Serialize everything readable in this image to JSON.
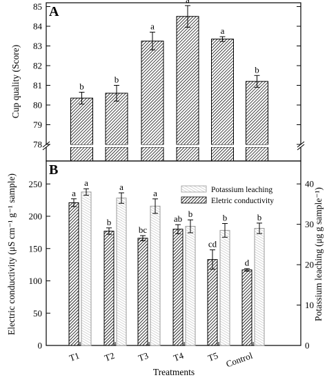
{
  "chart_data": [
    {
      "panel": "A",
      "type": "bar",
      "categories": [
        "T1",
        "T2",
        "T3",
        "T4",
        "T5",
        "Control"
      ],
      "values": [
        80.35,
        80.6,
        83.25,
        84.5,
        83.35,
        81.2
      ],
      "errors": [
        0.3,
        0.4,
        0.45,
        0.55,
        0.12,
        0.3
      ],
      "letters": [
        "b",
        "b",
        "a",
        "a",
        "a",
        "b"
      ],
      "ylabel": "Cup quality (Score)",
      "ylim": [
        78,
        85.5
      ],
      "yticks": [
        78,
        79,
        80,
        81,
        82,
        83,
        84,
        85
      ],
      "axis_break": true,
      "grid": false
    },
    {
      "panel": "B",
      "type": "bar",
      "categories": [
        "T1",
        "T2",
        "T3",
        "T4",
        "T5",
        "Control"
      ],
      "xlabel": "Treatments",
      "ylabel": "Electric conductivity (μS cm⁻¹ g⁻¹ sample)",
      "ylabel_right": "Potassium leaching (μg g sample⁻¹)",
      "ylim": [
        0,
        275
      ],
      "ylim_right": [
        0,
        44
      ],
      "yticks": [
        0,
        50,
        100,
        150,
        200,
        250
      ],
      "yticks_right": [
        0,
        10,
        20,
        30,
        40
      ],
      "legend_position": "top-right",
      "grid": false,
      "series": [
        {
          "name": "Eletric conductivity",
          "axis": "left",
          "values": [
            221,
            177,
            166,
            180,
            133,
            117
          ],
          "errors": [
            6,
            5,
            4,
            7,
            15,
            2
          ],
          "letters": [
            "a",
            "b",
            "bc",
            "ab",
            "cd",
            "d"
          ]
        },
        {
          "name": "Potassium leaching",
          "axis": "right",
          "values": [
            38,
            36.5,
            34.5,
            29.5,
            28.5,
            29
          ],
          "errors": [
            0.8,
            1.3,
            1.8,
            1.6,
            1.7,
            1.3
          ],
          "letters": [
            "a",
            "a",
            "a",
            "b",
            "b",
            "b"
          ]
        }
      ]
    }
  ]
}
